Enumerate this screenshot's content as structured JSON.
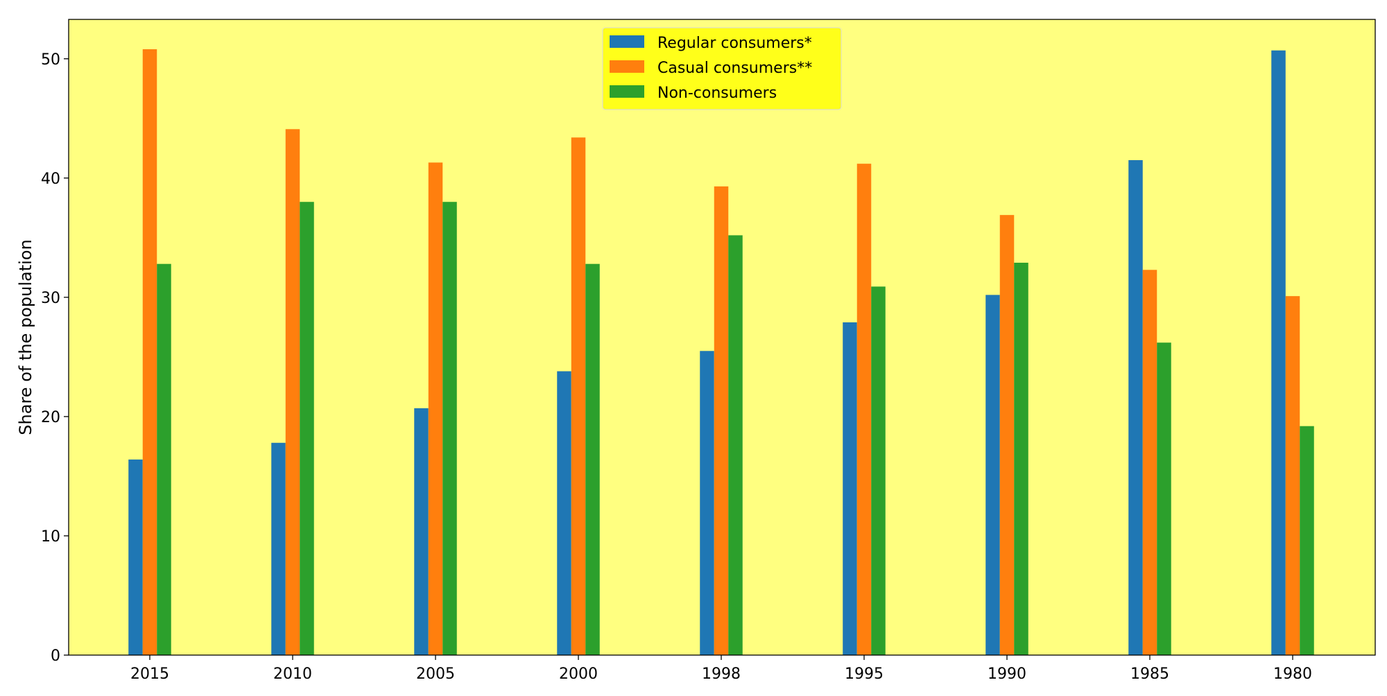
{
  "chart_data": {
    "type": "bar",
    "categories": [
      "2015",
      "2010",
      "2005",
      "2000",
      "1998",
      "1995",
      "1990",
      "1985",
      "1980"
    ],
    "series": [
      {
        "name": "Regular consumers*",
        "color": "#1f77b4",
        "values": [
          16.4,
          17.8,
          20.7,
          23.8,
          25.5,
          27.9,
          30.2,
          41.5,
          50.7
        ]
      },
      {
        "name": "Casual consumers**",
        "color": "#ff7f0e",
        "values": [
          50.8,
          44.1,
          41.3,
          43.4,
          39.3,
          41.2,
          36.9,
          32.3,
          30.1
        ]
      },
      {
        "name": "Non-consumers",
        "color": "#2ca02c",
        "values": [
          32.8,
          38.0,
          38.0,
          32.8,
          35.2,
          30.9,
          32.9,
          26.2,
          19.2
        ]
      }
    ],
    "ylabel": "Share of the population",
    "xlabel": "",
    "ylim": [
      0,
      53.3
    ],
    "yticks": [
      0,
      10,
      20,
      30,
      40,
      50
    ],
    "legend_position": "top-center",
    "grid": false,
    "plot_background": "#ffff80",
    "legend_background": "#ffff1a"
  }
}
